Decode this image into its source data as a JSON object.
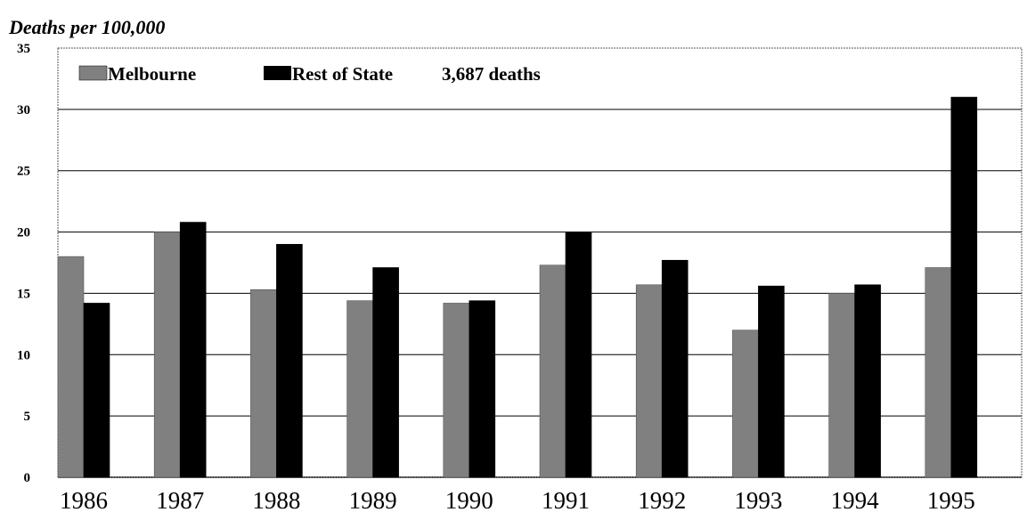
{
  "chart_data": {
    "type": "bar",
    "ylabel": "Deaths per 100,000",
    "xlabel": "",
    "ylim": [
      0,
      35
    ],
    "yticks": [
      "0",
      "5",
      "10",
      "15",
      "20",
      "25",
      "30",
      "35"
    ],
    "categories": [
      "1986",
      "1987",
      "1988",
      "1989",
      "1990",
      "1991",
      "1992",
      "1993",
      "1994",
      "1995"
    ],
    "series": [
      {
        "name": "Melbourne",
        "color": "#808080",
        "values": [
          18.0,
          20.0,
          15.3,
          14.4,
          14.2,
          17.3,
          15.7,
          12.0,
          15.0,
          17.1
        ]
      },
      {
        "name": "Rest of State",
        "color": "#000000",
        "values": [
          14.2,
          20.8,
          19.0,
          17.1,
          14.4,
          20.0,
          17.7,
          15.6,
          15.7,
          31.0
        ]
      }
    ],
    "annotation": "3,687 deaths",
    "grid": true,
    "legend_position": "top-left"
  }
}
